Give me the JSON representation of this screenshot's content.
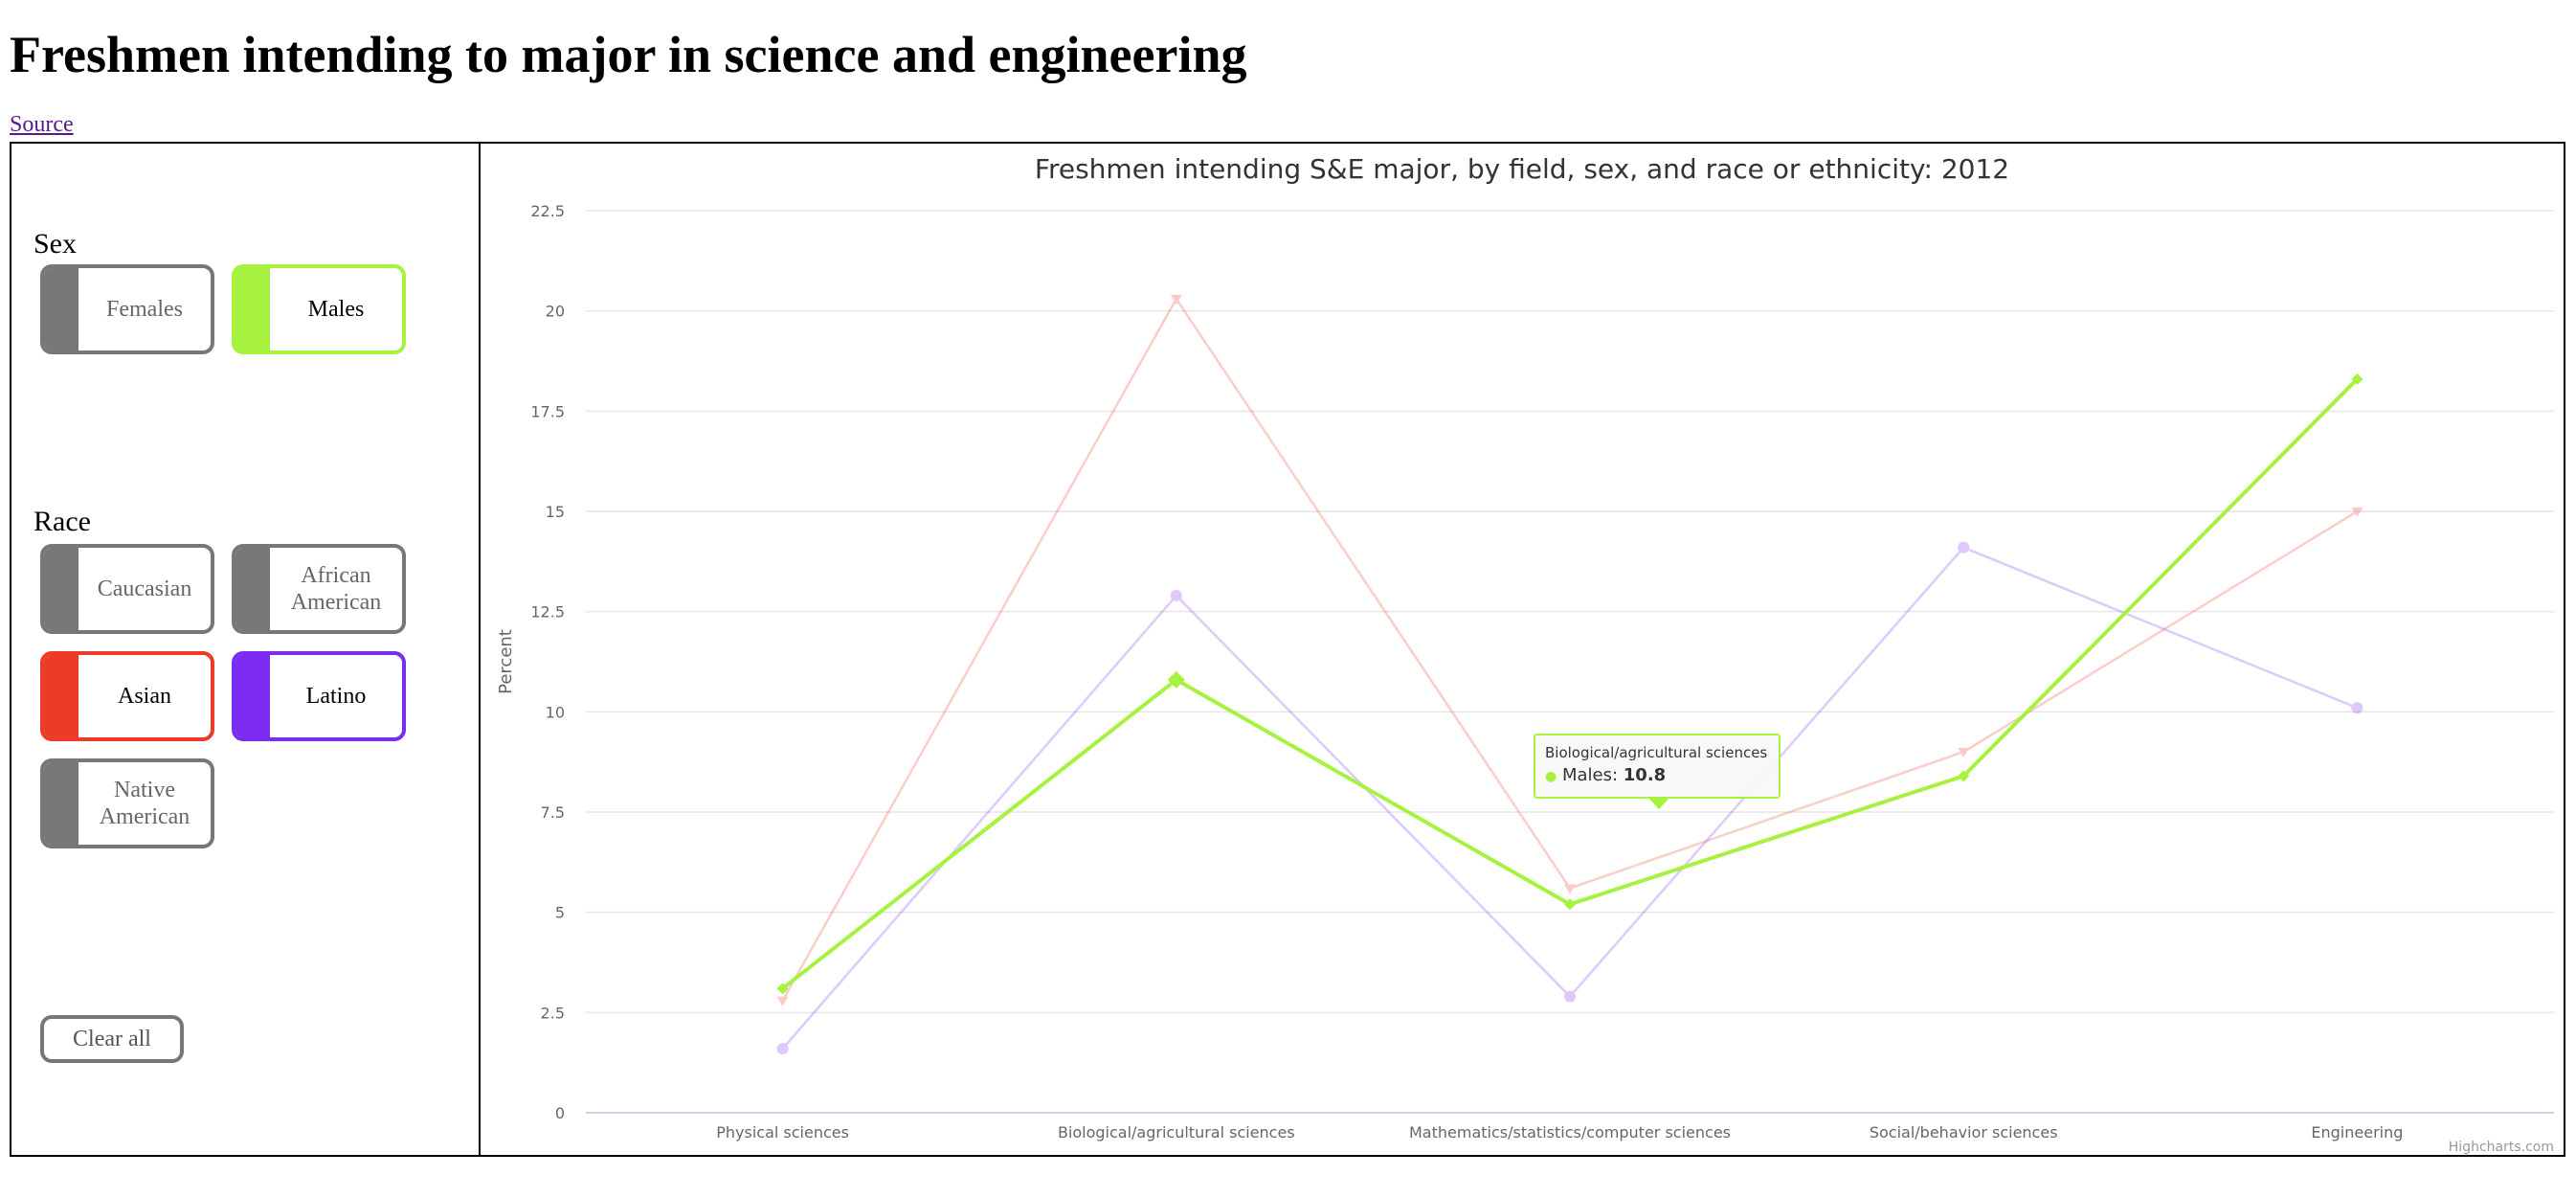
{
  "page": {
    "title": "Freshmen intending to major in science and engineering",
    "source_label": "Source"
  },
  "sidebar": {
    "sex_label": "Sex",
    "race_label": "Race",
    "clear_label": "Clear all",
    "sex_buttons": [
      {
        "label": "Females",
        "selected": false
      },
      {
        "label": "Males",
        "selected": true,
        "color": "#a6f23f"
      }
    ],
    "race_buttons": [
      {
        "label": "Caucasian",
        "selected": false
      },
      {
        "label": "African American",
        "selected": false
      },
      {
        "label": "Asian",
        "selected": true,
        "color": "#ee3a28"
      },
      {
        "label": "Latino",
        "selected": true,
        "color": "#7c2bf0"
      },
      {
        "label": "Native American",
        "selected": false
      }
    ]
  },
  "tooltip": {
    "category": "Biological/agricultural sciences",
    "series": "Males",
    "value": "10.8"
  },
  "credit": "Highcharts.com",
  "chart_data": {
    "type": "line",
    "title": "Freshmen intending S&E major, by field, sex, and race or ethnicity: 2012",
    "ylabel": "Percent",
    "xlabel": "",
    "ylim": [
      0,
      22.5
    ],
    "yticks": [
      0,
      2.5,
      5,
      7.5,
      10,
      12.5,
      15,
      17.5,
      20,
      22.5
    ],
    "ytick_labels": [
      "0",
      "2.5",
      "5",
      "7.5",
      "10",
      "12.5",
      "15",
      "17.5",
      "20",
      "22.5"
    ],
    "grid": true,
    "categories": [
      "Physical sciences",
      "Biological/agricultural sciences",
      "Mathematics/statistics/computer sciences",
      "Social/behavior sciences",
      "Engineering"
    ],
    "series": [
      {
        "name": "Asian",
        "color": "#ee3a28",
        "dimmed": true,
        "marker": "triangle-down",
        "values": [
          2.8,
          20.3,
          5.6,
          9.0,
          15.0
        ]
      },
      {
        "name": "Latino",
        "color": "#7c2bf0",
        "dimmed": true,
        "marker": "circle",
        "values": [
          1.6,
          12.9,
          2.9,
          14.1,
          10.1
        ]
      },
      {
        "name": "Males",
        "color": "#a6f23f",
        "dimmed": false,
        "marker": "diamond",
        "values": [
          3.1,
          10.8,
          5.2,
          8.4,
          18.3
        ]
      }
    ]
  }
}
